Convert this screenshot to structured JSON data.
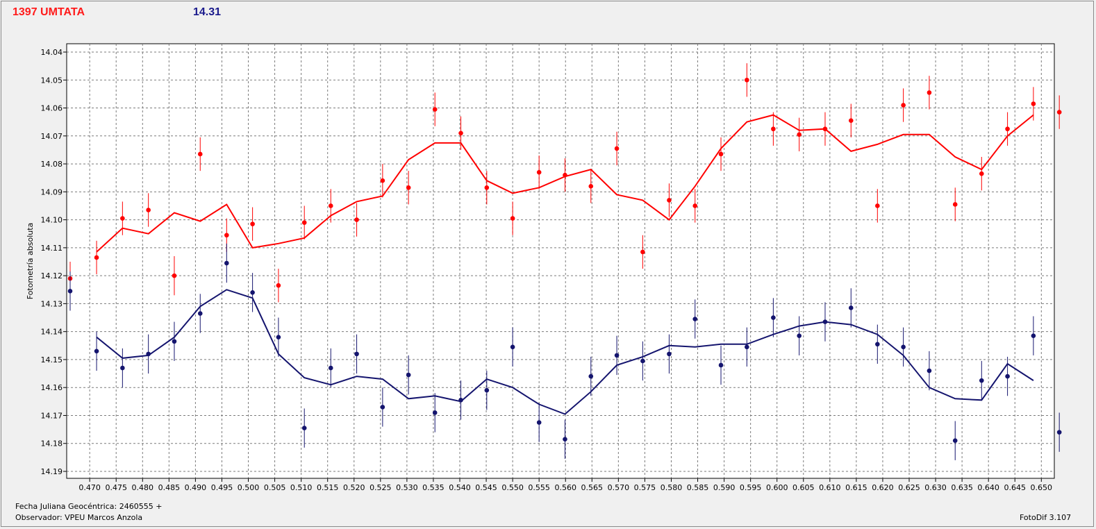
{
  "header": {
    "object_name": "1397 UMTATA",
    "magnitude": "14.31"
  },
  "footer": {
    "julian_date": "Fecha Juliana Geocéntrica: 2460555 +",
    "observer": "Observador: VPEU Marcos Anzola",
    "software": "FotoDif 3.107"
  },
  "chart_data": {
    "type": "scatter",
    "ylabel": "Fotometría absoluta",
    "xlabel": "",
    "xlim": [
      0.4663,
      0.6518
    ],
    "ylim": [
      14.04,
      14.19
    ],
    "y_inverted": true,
    "x_ticks": [
      "0.470",
      "0.475",
      "0.480",
      "0.485",
      "0.490",
      "0.495",
      "0.500",
      "0.505",
      "0.510",
      "0.515",
      "0.520",
      "0.525",
      "0.530",
      "0.535",
      "0.540",
      "0.545",
      "0.550",
      "0.555",
      "0.560",
      "0.565",
      "0.570",
      "0.575",
      "0.580",
      "0.585",
      "0.590",
      "0.595",
      "0.600",
      "0.605",
      "0.610",
      "0.615",
      "0.620",
      "0.625",
      "0.630",
      "0.635",
      "0.640",
      "0.645",
      "0.650"
    ],
    "y_ticks": [
      "14.04",
      "14.05",
      "14.06",
      "14.07",
      "14.08",
      "14.09",
      "14.10",
      "14.11",
      "14.12",
      "14.13",
      "14.14",
      "14.15",
      "14.16",
      "14.17",
      "14.18",
      "14.19"
    ],
    "grid": true,
    "series": [
      {
        "color": "#ff0000",
        "points": [
          [
            0.4663,
            14.121,
            0.006
          ],
          [
            0.4713,
            14.1135,
            0.006
          ],
          [
            0.4762,
            14.0995,
            0.006
          ],
          [
            0.4811,
            14.0965,
            0.006
          ],
          [
            0.486,
            14.12,
            0.007
          ],
          [
            0.4909,
            14.0765,
            0.006
          ],
          [
            0.4959,
            14.1055,
            0.006
          ],
          [
            0.5008,
            14.1015,
            0.006
          ],
          [
            0.5057,
            14.1235,
            0.006
          ],
          [
            0.5106,
            14.101,
            0.006
          ],
          [
            0.5156,
            14.095,
            0.006
          ],
          [
            0.5205,
            14.1,
            0.006
          ],
          [
            0.5254,
            14.086,
            0.006
          ],
          [
            0.5303,
            14.0885,
            0.006
          ],
          [
            0.5353,
            14.0605,
            0.006
          ],
          [
            0.5402,
            14.069,
            0.006
          ],
          [
            0.5451,
            14.0885,
            0.006
          ],
          [
            0.55,
            14.0995,
            0.006
          ],
          [
            0.555,
            14.083,
            0.006
          ],
          [
            0.5599,
            14.084,
            0.006
          ],
          [
            0.5648,
            14.088,
            0.006
          ],
          [
            0.5697,
            14.0745,
            0.006
          ],
          [
            0.5746,
            14.1115,
            0.006
          ],
          [
            0.5796,
            14.093,
            0.006
          ],
          [
            0.5845,
            14.095,
            0.006
          ],
          [
            0.5894,
            14.0765,
            0.006
          ],
          [
            0.5943,
            14.05,
            0.006
          ],
          [
            0.5993,
            14.0675,
            0.006
          ],
          [
            0.6042,
            14.0695,
            0.006
          ],
          [
            0.6091,
            14.0675,
            0.006
          ],
          [
            0.614,
            14.0645,
            0.006
          ],
          [
            0.619,
            14.095,
            0.006
          ],
          [
            0.6239,
            14.059,
            0.006
          ],
          [
            0.6288,
            14.0545,
            0.006
          ],
          [
            0.6337,
            14.0945,
            0.006
          ],
          [
            0.6387,
            14.0835,
            0.006
          ],
          [
            0.6436,
            14.0675,
            0.006
          ],
          [
            0.6485,
            14.0585,
            0.006
          ],
          [
            0.6534,
            14.0615,
            0.006
          ]
        ],
        "fit": [
          [
            0.4713,
            14.1115
          ],
          [
            0.4762,
            14.103
          ],
          [
            0.4811,
            14.105
          ],
          [
            0.486,
            14.0975
          ],
          [
            0.4909,
            14.1005
          ],
          [
            0.4959,
            14.0945
          ],
          [
            0.5008,
            14.11
          ],
          [
            0.5057,
            14.1085
          ],
          [
            0.5106,
            14.1065
          ],
          [
            0.5156,
            14.0985
          ],
          [
            0.5205,
            14.0935
          ],
          [
            0.5254,
            14.0915
          ],
          [
            0.5303,
            14.0785
          ],
          [
            0.5353,
            14.0725
          ],
          [
            0.5402,
            14.0725
          ],
          [
            0.5451,
            14.086
          ],
          [
            0.55,
            14.0905
          ],
          [
            0.555,
            14.0885
          ],
          [
            0.5599,
            14.0845
          ],
          [
            0.5648,
            14.082
          ],
          [
            0.5697,
            14.091
          ],
          [
            0.5746,
            14.093
          ],
          [
            0.5796,
            14.1
          ],
          [
            0.5845,
            14.088
          ],
          [
            0.5894,
            14.0745
          ],
          [
            0.5943,
            14.065
          ],
          [
            0.5993,
            14.0625
          ],
          [
            0.6042,
            14.068
          ],
          [
            0.6091,
            14.0675
          ],
          [
            0.614,
            14.0755
          ],
          [
            0.619,
            14.073
          ],
          [
            0.6239,
            14.0695
          ],
          [
            0.6288,
            14.0695
          ],
          [
            0.6337,
            14.0775
          ],
          [
            0.6387,
            14.082
          ],
          [
            0.6436,
            14.07
          ],
          [
            0.6485,
            14.0625
          ]
        ]
      },
      {
        "color": "#14146e",
        "points": [
          [
            0.4663,
            14.1255,
            0.007
          ],
          [
            0.4713,
            14.147,
            0.007
          ],
          [
            0.4762,
            14.153,
            0.007
          ],
          [
            0.4811,
            14.148,
            0.007
          ],
          [
            0.486,
            14.1435,
            0.007
          ],
          [
            0.4909,
            14.1335,
            0.007
          ],
          [
            0.4959,
            14.1155,
            0.007
          ],
          [
            0.5008,
            14.126,
            0.007
          ],
          [
            0.5057,
            14.142,
            0.007
          ],
          [
            0.5106,
            14.1745,
            0.007
          ],
          [
            0.5156,
            14.153,
            0.007
          ],
          [
            0.5205,
            14.148,
            0.007
          ],
          [
            0.5254,
            14.167,
            0.007
          ],
          [
            0.5303,
            14.1555,
            0.007
          ],
          [
            0.5353,
            14.169,
            0.007
          ],
          [
            0.5402,
            14.1645,
            0.007
          ],
          [
            0.5451,
            14.161,
            0.007
          ],
          [
            0.55,
            14.1455,
            0.007
          ],
          [
            0.555,
            14.1725,
            0.007
          ],
          [
            0.5599,
            14.1785,
            0.007
          ],
          [
            0.5648,
            14.156,
            0.007
          ],
          [
            0.5697,
            14.1485,
            0.007
          ],
          [
            0.5746,
            14.1505,
            0.007
          ],
          [
            0.5796,
            14.148,
            0.007
          ],
          [
            0.5845,
            14.1355,
            0.007
          ],
          [
            0.5894,
            14.152,
            0.007
          ],
          [
            0.5943,
            14.1455,
            0.007
          ],
          [
            0.5993,
            14.135,
            0.007
          ],
          [
            0.6042,
            14.1415,
            0.007
          ],
          [
            0.6091,
            14.1365,
            0.007
          ],
          [
            0.614,
            14.1315,
            0.007
          ],
          [
            0.619,
            14.1445,
            0.007
          ],
          [
            0.6239,
            14.1455,
            0.007
          ],
          [
            0.6288,
            14.154,
            0.007
          ],
          [
            0.6337,
            14.179,
            0.007
          ],
          [
            0.6387,
            14.1575,
            0.007
          ],
          [
            0.6436,
            14.156,
            0.007
          ],
          [
            0.6485,
            14.1415,
            0.007
          ],
          [
            0.6534,
            14.176,
            0.007
          ]
        ],
        "fit": [
          [
            0.4713,
            14.142
          ],
          [
            0.4762,
            14.1495
          ],
          [
            0.4811,
            14.1485
          ],
          [
            0.486,
            14.142
          ],
          [
            0.4909,
            14.131
          ],
          [
            0.4959,
            14.125
          ],
          [
            0.5008,
            14.128
          ],
          [
            0.5057,
            14.148
          ],
          [
            0.5106,
            14.1565
          ],
          [
            0.5156,
            14.159
          ],
          [
            0.5205,
            14.156
          ],
          [
            0.5254,
            14.157
          ],
          [
            0.5303,
            14.164
          ],
          [
            0.5353,
            14.163
          ],
          [
            0.5402,
            14.165
          ],
          [
            0.5451,
            14.157
          ],
          [
            0.55,
            14.16
          ],
          [
            0.555,
            14.166
          ],
          [
            0.5599,
            14.1695
          ],
          [
            0.5648,
            14.1615
          ],
          [
            0.5697,
            14.152
          ],
          [
            0.5746,
            14.149
          ],
          [
            0.5796,
            14.145
          ],
          [
            0.5845,
            14.1455
          ],
          [
            0.5894,
            14.1445
          ],
          [
            0.5943,
            14.1445
          ],
          [
            0.5993,
            14.141
          ],
          [
            0.6042,
            14.138
          ],
          [
            0.6091,
            14.1365
          ],
          [
            0.614,
            14.1375
          ],
          [
            0.619,
            14.141
          ],
          [
            0.6239,
            14.1485
          ],
          [
            0.6288,
            14.16
          ],
          [
            0.6337,
            14.164
          ],
          [
            0.6387,
            14.1645
          ],
          [
            0.6436,
            14.1515
          ],
          [
            0.6485,
            14.1575
          ]
        ]
      }
    ]
  }
}
